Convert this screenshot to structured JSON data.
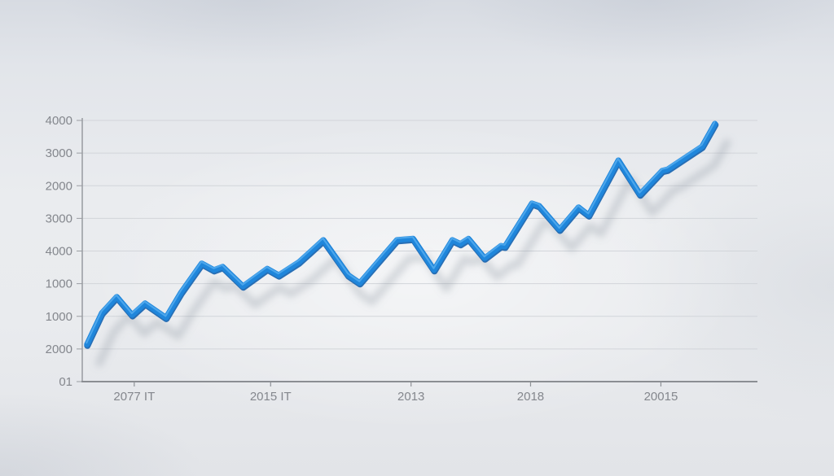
{
  "chart_data": {
    "type": "line",
    "title": "",
    "grid": true,
    "legend": false,
    "background_color": "#e7e9ec",
    "gridline_color": "#d2d5da",
    "axis_color": "#8b8e93",
    "label_color": "#84878d",
    "y_axis": {
      "tick_labels_top_to_bottom": [
        "4000",
        "3000",
        "2000",
        "3000",
        "4000",
        "1000",
        "1000",
        "2000",
        "01"
      ]
    },
    "x_axis": {
      "tick_labels": [
        "2077 IT",
        "2015 IT",
        "2013",
        "2018",
        "20015"
      ],
      "tick_positions_pct": [
        7.7,
        27.9,
        48.7,
        66.4,
        85.7
      ]
    },
    "ylim": [
      0,
      4000
    ],
    "value_note": "axis tick labels are non-monotonic as printed; point values estimated with baseline=0 and top gridline=4000",
    "series": [
      {
        "name": "series-1",
        "line_color": "#1f86db",
        "line_dark_color": "#1261ae",
        "highlight_color": "#54abee",
        "shadow_color": "#7d8795",
        "points": [
          [
            0.7,
            570
          ],
          [
            2.9,
            1050
          ],
          [
            5.1,
            1300
          ],
          [
            7.4,
            1020
          ],
          [
            9.3,
            1200
          ],
          [
            12.4,
            980
          ],
          [
            14.6,
            1360
          ],
          [
            17.7,
            1810
          ],
          [
            19.5,
            1710
          ],
          [
            20.8,
            1760
          ],
          [
            23.8,
            1460
          ],
          [
            27.4,
            1730
          ],
          [
            29.1,
            1630
          ],
          [
            32.1,
            1830
          ],
          [
            35.7,
            2170
          ],
          [
            39.4,
            1630
          ],
          [
            41.1,
            1510
          ],
          [
            46.6,
            2170
          ],
          [
            49.0,
            2190
          ],
          [
            52.1,
            1710
          ],
          [
            54.8,
            2170
          ],
          [
            56.0,
            2110
          ],
          [
            57.2,
            2190
          ],
          [
            59.6,
            1890
          ],
          [
            62.0,
            2080
          ],
          [
            62.6,
            2070
          ],
          [
            66.6,
            2730
          ],
          [
            67.7,
            2690
          ],
          [
            70.7,
            2330
          ],
          [
            73.5,
            2670
          ],
          [
            75.0,
            2550
          ],
          [
            79.4,
            3390
          ],
          [
            82.6,
            2870
          ],
          [
            85.9,
            3230
          ],
          [
            86.7,
            3250
          ],
          [
            91.8,
            3600
          ],
          [
            93.7,
            3950
          ]
        ]
      }
    ]
  }
}
